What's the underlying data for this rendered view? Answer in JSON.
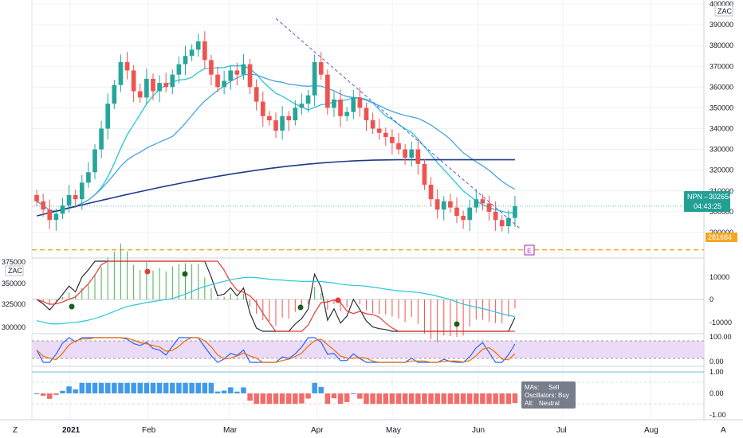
{
  "colors": {
    "up": "#26a69a",
    "down": "#ef5350",
    "grid": "#eef0f3",
    "axis": "#131722",
    "ma_fast": "#26c6da",
    "ma_mid": "#4aa3df",
    "ma_slow": "#1e3a8a",
    "trend": "#5b5bd6",
    "support": "#f5a623",
    "price_badge": "#22a094",
    "macd_black": "#2a2e39",
    "macd_red": "#e53935",
    "macd_cyan": "#26c6da",
    "hist_pos": "#4caf50",
    "hist_neg": "#ef5350",
    "stoch_band": "#e1bee7",
    "stoch_k": "#2962ff",
    "stoch_d": "#ef6c00",
    "rating_pos": "#1e88e5",
    "rating_neg": "#ef5350"
  },
  "top_right_label": "ZAC",
  "price_axis": [
    "400000",
    "390000",
    "380000",
    "370000",
    "360000",
    "350000",
    "340000",
    "330000",
    "320000",
    "310000",
    "300000",
    "290000"
  ],
  "last_price": {
    "symbol": "NPN",
    "value": "302654",
    "countdown": "04:43:25"
  },
  "support": {
    "value": "281684"
  },
  "earnings_marker": "E",
  "macd_panel": {
    "left_label": "ZAC",
    "left_axis": [
      "375000",
      "350000",
      "325000",
      "300000"
    ],
    "right_axis": [
      "10000",
      "0",
      "-10000"
    ]
  },
  "stoch_panel": {
    "right_axis": [
      "100.00",
      "0.00"
    ]
  },
  "rating_panel": {
    "right_axis": [
      "1.00",
      "0.00",
      "-1.00"
    ],
    "tooltip": [
      {
        "label": "MAs:",
        "value": "Sell"
      },
      {
        "label": "Oscillators:",
        "value": "Buy"
      },
      {
        "label": "All:",
        "value": "Neutral"
      }
    ]
  },
  "time_axis": [
    "2021",
    "Feb",
    "Mar",
    "Apr",
    "May",
    "Jun",
    "Jul",
    "Aug"
  ],
  "corner_left": "Z",
  "corner_right": "A",
  "chart_data": {
    "type": "candlestick",
    "ylim": [
      280000,
      400000
    ],
    "y_ticks": [
      290000,
      300000,
      310000,
      320000,
      330000,
      340000,
      350000,
      360000,
      370000,
      380000,
      390000,
      400000
    ],
    "x_labels": [
      "2021",
      "Feb",
      "Mar",
      "Apr",
      "May",
      "Jun",
      "Jul",
      "Aug"
    ],
    "closes": [
      305000,
      301000,
      296000,
      299000,
      303000,
      308000,
      306000,
      314000,
      319000,
      330000,
      340000,
      352000,
      361000,
      372000,
      368000,
      358000,
      355000,
      364000,
      358000,
      362000,
      360000,
      366000,
      371000,
      375000,
      378000,
      382000,
      373000,
      366000,
      360000,
      363000,
      368000,
      366000,
      371000,
      360000,
      353000,
      346000,
      344000,
      339000,
      346000,
      344000,
      350000,
      352000,
      356000,
      372000,
      366000,
      350000,
      354000,
      346000,
      348000,
      355000,
      350000,
      344000,
      340000,
      338000,
      336000,
      333000,
      330000,
      326000,
      330000,
      323000,
      313000,
      306000,
      301000,
      305000,
      302000,
      298000,
      296000,
      302000,
      306000,
      304000,
      300000,
      296000,
      293000,
      297000,
      302654
    ],
    "support_level": 281684,
    "last_price": 302654
  }
}
